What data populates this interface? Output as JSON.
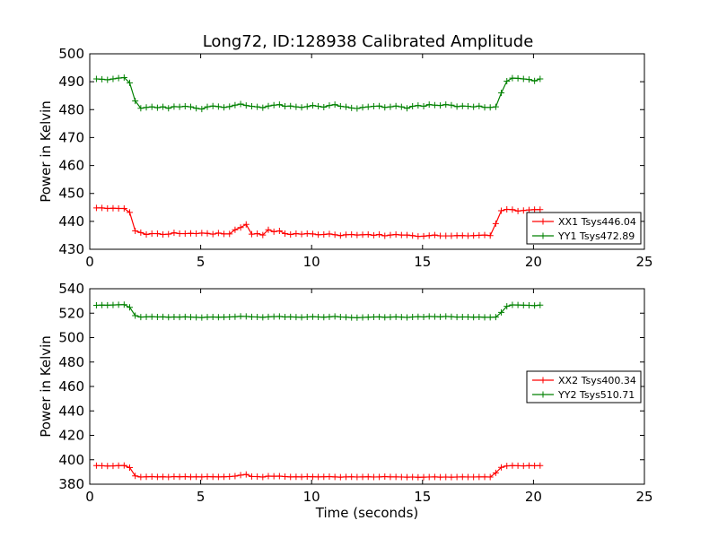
{
  "figure": {
    "title": "Long72, ID:128938 Calibrated Amplitude"
  },
  "chart_data": [
    {
      "type": "line",
      "title": "Long72, ID:128938 Calibrated Amplitude",
      "xlabel": "",
      "ylabel": "Power in Kelvin",
      "xlim": [
        0,
        25
      ],
      "ylim": [
        430,
        500
      ],
      "xticks": [
        "0",
        "5",
        "10",
        "15",
        "20",
        "25"
      ],
      "yticks": [
        "430",
        "440",
        "450",
        "460",
        "470",
        "480",
        "490",
        "500"
      ],
      "grid": false,
      "legend_position": "lower-right",
      "x": [
        0.3,
        0.55,
        0.8,
        1.05,
        1.3,
        1.55,
        1.8,
        2.05,
        2.3,
        2.55,
        2.8,
        3.05,
        3.3,
        3.55,
        3.8,
        4.05,
        4.3,
        4.55,
        4.8,
        5.05,
        5.3,
        5.55,
        5.8,
        6.05,
        6.3,
        6.55,
        6.8,
        7.05,
        7.3,
        7.55,
        7.8,
        8.05,
        8.3,
        8.55,
        8.8,
        9.05,
        9.3,
        9.55,
        9.8,
        10.05,
        10.3,
        10.55,
        10.8,
        11.05,
        11.3,
        11.55,
        11.8,
        12.05,
        12.3,
        12.55,
        12.8,
        13.05,
        13.3,
        13.55,
        13.8,
        14.05,
        14.3,
        14.55,
        14.8,
        15.05,
        15.3,
        15.55,
        15.8,
        16.05,
        16.3,
        16.55,
        16.8,
        17.05,
        17.3,
        17.55,
        17.8,
        18.05,
        18.3,
        18.55,
        18.8,
        19.05,
        19.3,
        19.55,
        19.8,
        20.05,
        20.3
      ],
      "series": [
        {
          "name": "XX1 Tsys446.04",
          "color": "#ff0000",
          "values": [
            444.8,
            444.8,
            444.6,
            444.7,
            444.6,
            444.6,
            443.2,
            436.6,
            436.0,
            435.3,
            435.6,
            435.6,
            435.3,
            435.4,
            435.9,
            435.6,
            435.6,
            435.7,
            435.6,
            435.8,
            435.7,
            435.4,
            435.8,
            435.5,
            435.5,
            437.0,
            437.8,
            438.9,
            435.4,
            435.6,
            435.1,
            437.0,
            436.3,
            436.6,
            435.6,
            435.3,
            435.6,
            435.4,
            435.6,
            435.5,
            435.2,
            435.3,
            435.5,
            435.2,
            434.9,
            435.2,
            435.3,
            435.1,
            435.2,
            435.3,
            435.0,
            435.3,
            434.8,
            435.1,
            435.3,
            435.1,
            435.1,
            434.9,
            434.6,
            434.7,
            434.9,
            435.1,
            434.8,
            434.8,
            434.8,
            434.9,
            434.9,
            434.8,
            434.9,
            435.0,
            435.1,
            434.9,
            439.2,
            443.8,
            444.3,
            444.2,
            443.7,
            443.9,
            444.1,
            444.2,
            444.2
          ]
        },
        {
          "name": "YY1 Tsys472.89",
          "color": "#008000",
          "values": [
            491.0,
            490.9,
            490.7,
            491.0,
            491.3,
            491.5,
            489.6,
            483.1,
            480.5,
            480.8,
            481.0,
            480.7,
            481.0,
            480.5,
            481.1,
            481.0,
            481.2,
            481.0,
            480.5,
            480.2,
            481.0,
            481.3,
            481.1,
            480.8,
            481.1,
            481.6,
            482.0,
            481.5,
            481.2,
            481.0,
            480.7,
            481.3,
            481.6,
            481.8,
            481.2,
            481.3,
            481.0,
            480.8,
            481.1,
            481.5,
            481.2,
            480.9,
            481.5,
            481.8,
            481.2,
            481.0,
            480.6,
            480.4,
            480.8,
            481.0,
            481.2,
            481.3,
            480.8,
            481.0,
            481.3,
            481.0,
            480.5,
            481.2,
            481.5,
            481.2,
            481.8,
            481.6,
            481.5,
            481.8,
            481.6,
            481.1,
            481.3,
            481.2,
            481.0,
            481.3,
            480.8,
            480.8,
            481.0,
            486.0,
            490.2,
            491.3,
            491.2,
            491.0,
            490.8,
            490.3,
            491.0
          ]
        }
      ]
    },
    {
      "type": "line",
      "title": "",
      "xlabel": "Time (seconds)",
      "ylabel": "Power in Kelvin",
      "xlim": [
        0,
        25
      ],
      "ylim": [
        380,
        540
      ],
      "xticks": [
        "0",
        "5",
        "10",
        "15",
        "20",
        "25"
      ],
      "yticks": [
        "380",
        "400",
        "420",
        "440",
        "460",
        "480",
        "500",
        "520",
        "540"
      ],
      "grid": false,
      "legend_position": "center-right",
      "x": [
        0.3,
        0.55,
        0.8,
        1.05,
        1.3,
        1.55,
        1.8,
        2.05,
        2.3,
        2.55,
        2.8,
        3.05,
        3.3,
        3.55,
        3.8,
        4.05,
        4.3,
        4.55,
        4.8,
        5.05,
        5.3,
        5.55,
        5.8,
        6.05,
        6.3,
        6.55,
        6.8,
        7.05,
        7.3,
        7.55,
        7.8,
        8.05,
        8.3,
        8.55,
        8.8,
        9.05,
        9.3,
        9.55,
        9.8,
        10.05,
        10.3,
        10.55,
        10.8,
        11.05,
        11.3,
        11.55,
        11.8,
        12.05,
        12.3,
        12.55,
        12.8,
        13.05,
        13.3,
        13.55,
        13.8,
        14.05,
        14.3,
        14.55,
        14.8,
        15.05,
        15.3,
        15.55,
        15.8,
        16.05,
        16.3,
        16.55,
        16.8,
        17.05,
        17.3,
        17.55,
        17.8,
        18.05,
        18.3,
        18.55,
        18.8,
        19.05,
        19.3,
        19.55,
        19.8,
        20.05,
        20.3
      ],
      "series": [
        {
          "name": "XX2 Tsys400.34",
          "color": "#ff0000",
          "values": [
            395.2,
            395.1,
            394.9,
            395.0,
            395.2,
            395.3,
            393.6,
            386.8,
            385.9,
            386.1,
            386.2,
            386.0,
            386.1,
            385.9,
            386.2,
            386.1,
            386.2,
            386.0,
            386.1,
            386.0,
            386.2,
            386.1,
            386.0,
            386.1,
            386.2,
            386.6,
            387.4,
            388.0,
            386.3,
            386.2,
            385.9,
            386.6,
            386.5,
            386.6,
            386.2,
            386.0,
            386.1,
            386.0,
            386.2,
            386.1,
            386.0,
            386.1,
            386.2,
            386.0,
            385.8,
            386.0,
            386.1,
            385.9,
            386.0,
            386.1,
            385.9,
            386.0,
            386.2,
            386.0,
            386.0,
            385.9,
            385.8,
            385.9,
            385.7,
            385.8,
            385.9,
            386.0,
            385.8,
            385.9,
            385.8,
            385.9,
            386.0,
            385.9,
            385.9,
            386.0,
            386.0,
            385.9,
            389.3,
            393.8,
            395.0,
            395.2,
            395.1,
            395.0,
            395.2,
            395.1,
            395.2
          ]
        },
        {
          "name": "YY2 Tsys510.71",
          "color": "#008000",
          "values": [
            526.4,
            526.6,
            526.5,
            526.7,
            526.9,
            527.0,
            524.8,
            518.0,
            516.8,
            517.0,
            517.1,
            516.9,
            517.0,
            516.7,
            516.9,
            516.8,
            517.0,
            516.8,
            516.6,
            516.4,
            516.8,
            516.9,
            516.7,
            516.8,
            516.9,
            517.1,
            517.4,
            517.3,
            517.0,
            516.9,
            516.6,
            517.0,
            517.2,
            517.3,
            516.9,
            517.0,
            516.8,
            516.6,
            516.9,
            517.1,
            516.9,
            516.7,
            517.0,
            517.3,
            516.9,
            516.7,
            516.4,
            516.3,
            516.5,
            516.7,
            516.9,
            517.0,
            516.6,
            516.8,
            517.0,
            516.8,
            516.5,
            516.9,
            517.1,
            516.9,
            517.3,
            517.2,
            517.0,
            517.3,
            517.1,
            516.8,
            516.9,
            516.9,
            516.7,
            516.9,
            516.6,
            516.6,
            516.8,
            520.6,
            525.6,
            526.8,
            526.7,
            526.5,
            526.4,
            526.2,
            526.6
          ]
        }
      ]
    }
  ]
}
